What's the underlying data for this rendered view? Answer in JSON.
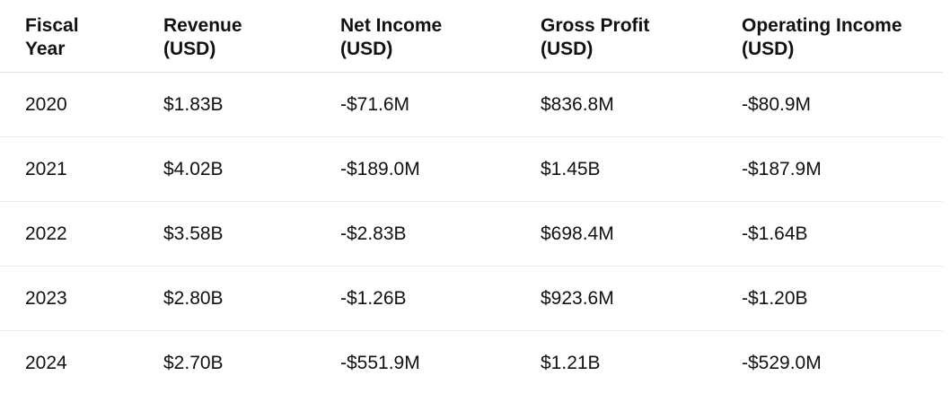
{
  "table": {
    "headers": [
      [
        "Fiscal",
        "Year"
      ],
      [
        "Revenue",
        "(USD)"
      ],
      [
        "Net Income",
        "(USD)"
      ],
      [
        "Gross Profit",
        "(USD)"
      ],
      [
        "Operating Income",
        "(USD)"
      ]
    ],
    "rows": [
      [
        "2020",
        "$1.83B",
        "-$71.6M",
        "$836.8M",
        "-$80.9M"
      ],
      [
        "2021",
        "$4.02B",
        "-$189.0M",
        "$1.45B",
        "-$187.9M"
      ],
      [
        "2022",
        "$3.58B",
        "-$2.83B",
        "$698.4M",
        "-$1.64B"
      ],
      [
        "2023",
        "$2.80B",
        "-$1.26B",
        "$923.6M",
        "-$1.20B"
      ],
      [
        "2024",
        "$2.70B",
        "-$551.9M",
        "$1.21B",
        "-$529.0M"
      ]
    ]
  }
}
